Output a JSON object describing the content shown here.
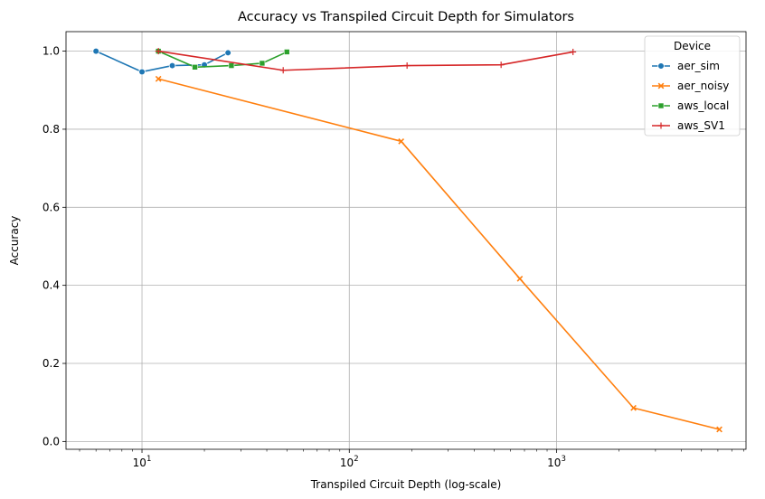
{
  "chart_data": {
    "type": "line",
    "title": "Accuracy vs Transpiled Circuit Depth for Simulators",
    "xlabel": "Transpiled Circuit Depth (log-scale)",
    "ylabel": "Accuracy",
    "xscale": "log",
    "xlim": [
      4.3,
      8200
    ],
    "ylim": [
      -0.02,
      1.05
    ],
    "grid": true,
    "x_ticks": [
      {
        "value": 10,
        "base": "10",
        "exp": "1"
      },
      {
        "value": 100,
        "base": "10",
        "exp": "2"
      },
      {
        "value": 1000,
        "base": "10",
        "exp": "3"
      }
    ],
    "y_ticks": [
      {
        "value": 0.0,
        "label": "0.0"
      },
      {
        "value": 0.2,
        "label": "0.2"
      },
      {
        "value": 0.4,
        "label": "0.4"
      },
      {
        "value": 0.6,
        "label": "0.6"
      },
      {
        "value": 0.8,
        "label": "0.8"
      },
      {
        "value": 1.0,
        "label": "1.0"
      }
    ],
    "legend": {
      "title": "Device",
      "placement": "top-right"
    },
    "series": [
      {
        "name": "aer_sim",
        "color": "#1f77b4",
        "marker": "circle",
        "x": [
          6,
          10,
          14,
          20,
          26
        ],
        "y": [
          1.0,
          0.947,
          0.963,
          0.965,
          0.996
        ]
      },
      {
        "name": "aer_noisy",
        "color": "#ff7f0e",
        "marker": "x",
        "x": [
          12,
          178,
          665,
          2350,
          6100
        ],
        "y": [
          0.929,
          0.769,
          0.417,
          0.086,
          0.031
        ]
      },
      {
        "name": "aws_local",
        "color": "#2ca02c",
        "marker": "square",
        "x": [
          12,
          18,
          27,
          38,
          50
        ],
        "y": [
          1.0,
          0.959,
          0.963,
          0.969,
          0.998
        ]
      },
      {
        "name": "aws_SV1",
        "color": "#d62728",
        "marker": "plus",
        "x": [
          12,
          48,
          190,
          540,
          1200
        ],
        "y": [
          1.0,
          0.951,
          0.963,
          0.965,
          0.998
        ]
      }
    ]
  }
}
